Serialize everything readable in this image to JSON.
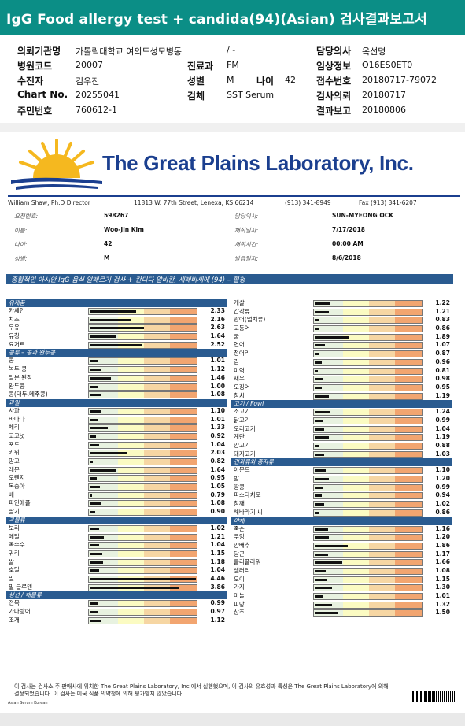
{
  "title": "IgG Food allergy test + candida(94)(Asian) 검사결과보고서",
  "colors": {
    "title_bg": "#0b8e86",
    "section_bg": "#2a5b90",
    "lab_blue": "#1b3f8f",
    "sun": "#f5b81f"
  },
  "header": {
    "institution_label": "의뢰기관명",
    "institution_value": "가톨릭대학교 여의도성모병동",
    "slash": "/ -",
    "doctor_label": "담당의사",
    "doctor_value": "옥선명",
    "hospital_code_label": "병원코드",
    "hospital_code_value": "20007",
    "dept_label": "진료과",
    "dept_value": "FM",
    "clinical_label": "임상정보",
    "clinical_value": "O16ES0ET0",
    "patient_label": "수진자",
    "patient_value": "김우진",
    "sex_label": "성별",
    "sex_value": "M",
    "age_label": "나이",
    "age_value": "42",
    "receipt_label": "접수번호",
    "receipt_value": "20180717-79072",
    "chart_label": "Chart No.",
    "chart_value": "20255041",
    "specimen_label": "검체",
    "specimen_value": "SST Serum",
    "request_label": "검사의뢰",
    "request_value": "20180717",
    "id_label": "주민번호",
    "id_value": "760612-1",
    "report_label": "결과보고",
    "report_value": "20180806"
  },
  "lab": {
    "name": "The Great Plains Laboratory, Inc.",
    "director": "William Shaw, Ph.D  Director",
    "address": "11813 W. 77th Street, Lenexa, KS 66214",
    "phone": "(913) 341-8949",
    "fax": "Fax (913) 341-6207"
  },
  "patient_info": {
    "req_no_label": "요청번호:",
    "req_no": "598267",
    "name_label": "이름:",
    "name": "Woo-Jin Kim",
    "age_label": "나이:",
    "age": "42",
    "sex_label": "성별:",
    "sex": "M",
    "doctor_label": "담당의사:",
    "doctor": "SUN-MYEONG OCK",
    "collect_date_label": "채취일자:",
    "collect_date": "7/17/2018",
    "collect_time_label": "채취시간:",
    "collect_time": "00:00  AM",
    "report_date_label": "발급일자:",
    "report_date": "8/6/2018"
  },
  "panel_title": "종합적인 아시안 IgG 음식 알레르기 검사 + 칸디다 알비칸, 세레비세에 (94) – 혈청",
  "left_sections": [
    {
      "title": "유제품",
      "items": [
        {
          "name": "카세인",
          "value": 2.33
        },
        {
          "name": "치즈",
          "value": 2.16
        },
        {
          "name": "우유",
          "value": 2.63
        },
        {
          "name": "유청",
          "value": 1.64
        },
        {
          "name": "요거트",
          "value": 2.52
        }
      ]
    },
    {
      "title": "콩류 – 콩과 완두콩",
      "items": [
        {
          "name": "콩",
          "value": 1.01
        },
        {
          "name": "녹두 콩",
          "value": 1.12
        },
        {
          "name": "일본 된장",
          "value": 1.46
        },
        {
          "name": "완두콩",
          "value": 1.0
        },
        {
          "name": "콩(대두,메주콩)",
          "value": 1.08
        }
      ]
    },
    {
      "title": "과일",
      "items": [
        {
          "name": "사과",
          "value": 1.1
        },
        {
          "name": "바나나",
          "value": 1.01
        },
        {
          "name": "체리",
          "value": 1.33
        },
        {
          "name": "코코넛",
          "value": 0.92
        },
        {
          "name": "포도",
          "value": 1.04
        },
        {
          "name": "키위",
          "value": 2.03
        },
        {
          "name": "망고",
          "value": 0.82
        },
        {
          "name": "레몬",
          "value": 1.64
        },
        {
          "name": "오렌지",
          "value": 0.95
        },
        {
          "name": "복숭아",
          "value": 1.05
        },
        {
          "name": "배",
          "value": 0.79
        },
        {
          "name": "파인애플",
          "value": 1.08
        },
        {
          "name": "딸기",
          "value": 0.9
        }
      ]
    },
    {
      "title": "곡물류",
      "items": [
        {
          "name": "보리",
          "value": 1.02
        },
        {
          "name": "메밀",
          "value": 1.21
        },
        {
          "name": "옥수수",
          "value": 1.04
        },
        {
          "name": "귀리",
          "value": 1.15
        },
        {
          "name": "쌀",
          "value": 1.18
        },
        {
          "name": "호밀",
          "value": 1.04
        },
        {
          "name": "밀",
          "value": 4.46
        },
        {
          "name": "밀 글루텐",
          "value": 3.86
        }
      ]
    },
    {
      "title": "생선 / 해물류",
      "items": [
        {
          "name": "전복",
          "value": 0.99
        },
        {
          "name": "가다랑어",
          "value": 0.97
        },
        {
          "name": "조개",
          "value": 1.12
        }
      ]
    }
  ],
  "right_sections": [
    {
      "title": "",
      "items": [
        {
          "name": "게살",
          "value": 1.22
        },
        {
          "name": "갑각류",
          "value": 1.21
        },
        {
          "name": "광어(넙치류)",
          "value": 0.83
        },
        {
          "name": "고등어",
          "value": 0.86
        },
        {
          "name": "굴",
          "value": 1.89
        },
        {
          "name": "연어",
          "value": 1.07
        },
        {
          "name": "정어리",
          "value": 0.87
        },
        {
          "name": "김",
          "value": 0.96
        },
        {
          "name": "미역",
          "value": 0.81
        },
        {
          "name": "새우",
          "value": 0.98
        },
        {
          "name": "오징어",
          "value": 0.95
        },
        {
          "name": "참치",
          "value": 1.19
        }
      ]
    },
    {
      "title": "고기 / Fowl",
      "items": [
        {
          "name": "소고기",
          "value": 1.24
        },
        {
          "name": "닭고기",
          "value": 0.99
        },
        {
          "name": "오리고기",
          "value": 1.04
        },
        {
          "name": "계란",
          "value": 1.19
        },
        {
          "name": "양고기",
          "value": 0.88
        },
        {
          "name": "돼지고기",
          "value": 1.03
        }
      ]
    },
    {
      "title": "견과류와 종자류",
      "items": [
        {
          "name": "아몬드",
          "value": 1.1
        },
        {
          "name": "밤",
          "value": 1.2
        },
        {
          "name": "땅콩",
          "value": 0.99
        },
        {
          "name": "피스타치오",
          "value": 0.94
        },
        {
          "name": "참깨",
          "value": 1.02
        },
        {
          "name": "해바라기 씨",
          "value": 0.86
        }
      ]
    },
    {
      "title": "야채",
      "items": [
        {
          "name": "죽순",
          "value": 1.16
        },
        {
          "name": "우엉",
          "value": 1.2
        },
        {
          "name": "양배추",
          "value": 1.86
        },
        {
          "name": "당근",
          "value": 1.17
        },
        {
          "name": "콜리플라워",
          "value": 1.66
        },
        {
          "name": "셀러리",
          "value": 1.08
        },
        {
          "name": "오이",
          "value": 1.15
        },
        {
          "name": "가지",
          "value": 1.3
        },
        {
          "name": "마늘",
          "value": 1.01
        },
        {
          "name": "피망",
          "value": 1.32
        },
        {
          "name": "상추",
          "value": 1.5
        }
      ]
    }
  ],
  "footnote": "이 검사는 검사소 주 판매사에 위치한 The Great Plains Laboratory, Inc.에서 실행했으며, 이 검사의 유효성과 특성은 The Great Plains Laboratory에 의해 결정되었습니다. 이 검사는 미국 식품 의약청에 의해 평가받지 않았습니다.",
  "footer_id": "Asian Serum Korean"
}
